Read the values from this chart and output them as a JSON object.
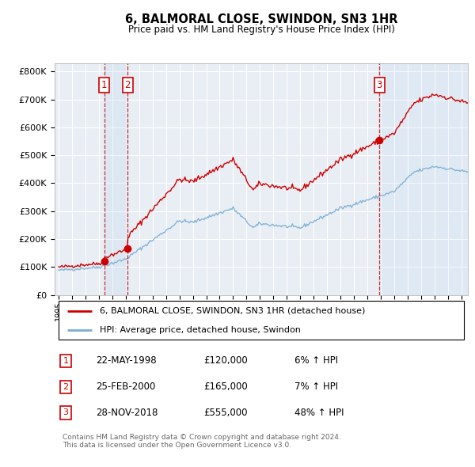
{
  "title": "6, BALMORAL CLOSE, SWINDON, SN3 1HR",
  "subtitle": "Price paid vs. HM Land Registry's House Price Index (HPI)",
  "ylim": [
    0,
    830000
  ],
  "yticks": [
    0,
    100000,
    200000,
    300000,
    400000,
    500000,
    600000,
    700000,
    800000
  ],
  "ytick_labels": [
    "£0",
    "£100K",
    "£200K",
    "£300K",
    "£400K",
    "£500K",
    "£600K",
    "£700K",
    "£800K"
  ],
  "xlim_start": 1994.7,
  "xlim_end": 2025.5,
  "property_color": "#cc0000",
  "hpi_color": "#7aadd4",
  "background_color": "#e8eef4",
  "grid_color": "#ffffff",
  "transactions": [
    {
      "label": "1",
      "date": 1998.39,
      "price": 120000
    },
    {
      "label": "2",
      "date": 2000.15,
      "price": 165000
    },
    {
      "label": "3",
      "date": 2018.91,
      "price": 555000
    }
  ],
  "table_rows": [
    {
      "num": "1",
      "date": "22-MAY-1998",
      "price": "£120,000",
      "hpi": "6% ↑ HPI"
    },
    {
      "num": "2",
      "date": "25-FEB-2000",
      "price": "£165,000",
      "hpi": "7% ↑ HPI"
    },
    {
      "num": "3",
      "date": "28-NOV-2018",
      "price": "£555,000",
      "hpi": "48% ↑ HPI"
    }
  ],
  "legend_entries": [
    "6, BALMORAL CLOSE, SWINDON, SN3 1HR (detached house)",
    "HPI: Average price, detached house, Swindon"
  ],
  "footnote": "Contains HM Land Registry data © Crown copyright and database right 2024.\nThis data is licensed under the Open Government Licence v3.0."
}
